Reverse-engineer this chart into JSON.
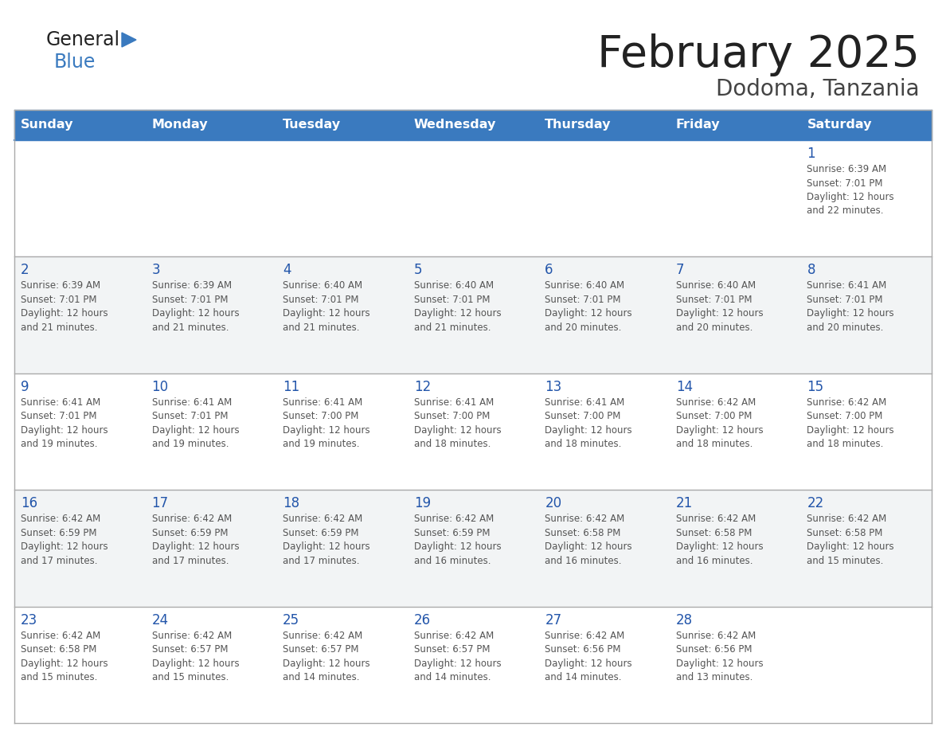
{
  "title": "February 2025",
  "subtitle": "Dodoma, Tanzania",
  "days_of_week": [
    "Sunday",
    "Monday",
    "Tuesday",
    "Wednesday",
    "Thursday",
    "Friday",
    "Saturday"
  ],
  "header_bg": "#3a7abf",
  "header_text": "#ffffff",
  "row_bg_light": "#f2f4f5",
  "row_bg_white": "#ffffff",
  "border_color": "#aaaaaa",
  "day_number_color": "#2255aa",
  "text_color": "#555555",
  "title_color": "#222222",
  "subtitle_color": "#444444",
  "calendar": [
    [
      null,
      null,
      null,
      null,
      null,
      null,
      {
        "day": 1,
        "sunrise": "6:39 AM",
        "sunset": "7:01 PM",
        "daylight": "12 hours and 22 minutes."
      }
    ],
    [
      {
        "day": 2,
        "sunrise": "6:39 AM",
        "sunset": "7:01 PM",
        "daylight": "12 hours and 21 minutes."
      },
      {
        "day": 3,
        "sunrise": "6:39 AM",
        "sunset": "7:01 PM",
        "daylight": "12 hours and 21 minutes."
      },
      {
        "day": 4,
        "sunrise": "6:40 AM",
        "sunset": "7:01 PM",
        "daylight": "12 hours and 21 minutes."
      },
      {
        "day": 5,
        "sunrise": "6:40 AM",
        "sunset": "7:01 PM",
        "daylight": "12 hours and 21 minutes."
      },
      {
        "day": 6,
        "sunrise": "6:40 AM",
        "sunset": "7:01 PM",
        "daylight": "12 hours and 20 minutes."
      },
      {
        "day": 7,
        "sunrise": "6:40 AM",
        "sunset": "7:01 PM",
        "daylight": "12 hours and 20 minutes."
      },
      {
        "day": 8,
        "sunrise": "6:41 AM",
        "sunset": "7:01 PM",
        "daylight": "12 hours and 20 minutes."
      }
    ],
    [
      {
        "day": 9,
        "sunrise": "6:41 AM",
        "sunset": "7:01 PM",
        "daylight": "12 hours and 19 minutes."
      },
      {
        "day": 10,
        "sunrise": "6:41 AM",
        "sunset": "7:01 PM",
        "daylight": "12 hours and 19 minutes."
      },
      {
        "day": 11,
        "sunrise": "6:41 AM",
        "sunset": "7:00 PM",
        "daylight": "12 hours and 19 minutes."
      },
      {
        "day": 12,
        "sunrise": "6:41 AM",
        "sunset": "7:00 PM",
        "daylight": "12 hours and 18 minutes."
      },
      {
        "day": 13,
        "sunrise": "6:41 AM",
        "sunset": "7:00 PM",
        "daylight": "12 hours and 18 minutes."
      },
      {
        "day": 14,
        "sunrise": "6:42 AM",
        "sunset": "7:00 PM",
        "daylight": "12 hours and 18 minutes."
      },
      {
        "day": 15,
        "sunrise": "6:42 AM",
        "sunset": "7:00 PM",
        "daylight": "12 hours and 18 minutes."
      }
    ],
    [
      {
        "day": 16,
        "sunrise": "6:42 AM",
        "sunset": "6:59 PM",
        "daylight": "12 hours and 17 minutes."
      },
      {
        "day": 17,
        "sunrise": "6:42 AM",
        "sunset": "6:59 PM",
        "daylight": "12 hours and 17 minutes."
      },
      {
        "day": 18,
        "sunrise": "6:42 AM",
        "sunset": "6:59 PM",
        "daylight": "12 hours and 17 minutes."
      },
      {
        "day": 19,
        "sunrise": "6:42 AM",
        "sunset": "6:59 PM",
        "daylight": "12 hours and 16 minutes."
      },
      {
        "day": 20,
        "sunrise": "6:42 AM",
        "sunset": "6:58 PM",
        "daylight": "12 hours and 16 minutes."
      },
      {
        "day": 21,
        "sunrise": "6:42 AM",
        "sunset": "6:58 PM",
        "daylight": "12 hours and 16 minutes."
      },
      {
        "day": 22,
        "sunrise": "6:42 AM",
        "sunset": "6:58 PM",
        "daylight": "12 hours and 15 minutes."
      }
    ],
    [
      {
        "day": 23,
        "sunrise": "6:42 AM",
        "sunset": "6:58 PM",
        "daylight": "12 hours and 15 minutes."
      },
      {
        "day": 24,
        "sunrise": "6:42 AM",
        "sunset": "6:57 PM",
        "daylight": "12 hours and 15 minutes."
      },
      {
        "day": 25,
        "sunrise": "6:42 AM",
        "sunset": "6:57 PM",
        "daylight": "12 hours and 14 minutes."
      },
      {
        "day": 26,
        "sunrise": "6:42 AM",
        "sunset": "6:57 PM",
        "daylight": "12 hours and 14 minutes."
      },
      {
        "day": 27,
        "sunrise": "6:42 AM",
        "sunset": "6:56 PM",
        "daylight": "12 hours and 14 minutes."
      },
      {
        "day": 28,
        "sunrise": "6:42 AM",
        "sunset": "6:56 PM",
        "daylight": "12 hours and 13 minutes."
      },
      null
    ]
  ],
  "row_colors": [
    "#ffffff",
    "#f2f4f5",
    "#ffffff",
    "#f2f4f5",
    "#ffffff"
  ]
}
